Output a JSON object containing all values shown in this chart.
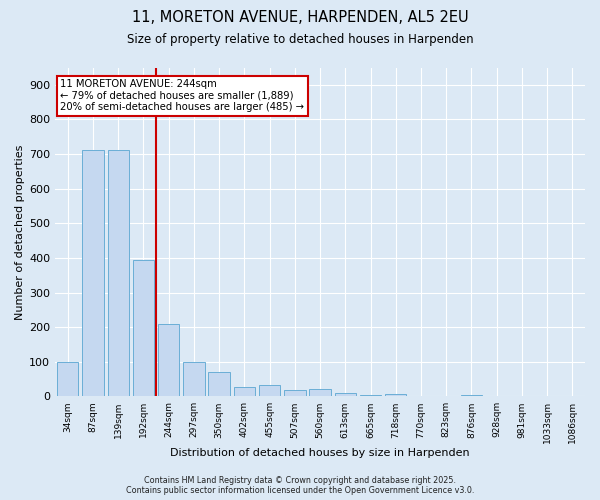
{
  "title_line1": "11, MORETON AVENUE, HARPENDEN, AL5 2EU",
  "title_line2": "Size of property relative to detached houses in Harpenden",
  "categories": [
    "34sqm",
    "87sqm",
    "139sqm",
    "192sqm",
    "244sqm",
    "297sqm",
    "350sqm",
    "402sqm",
    "455sqm",
    "507sqm",
    "560sqm",
    "613sqm",
    "665sqm",
    "718sqm",
    "770sqm",
    "823sqm",
    "876sqm",
    "928sqm",
    "981sqm",
    "1033sqm",
    "1086sqm"
  ],
  "values": [
    100,
    712,
    712,
    395,
    210,
    98,
    70,
    28,
    32,
    18,
    22,
    10,
    5,
    8,
    0,
    0,
    5,
    0,
    0,
    0,
    0
  ],
  "bar_color": "#c5d8f0",
  "bar_edge_color": "#6aaed6",
  "background_color": "#dce9f5",
  "grid_color": "#ffffff",
  "vline_index": 4,
  "vline_color": "#cc0000",
  "annotation_line1": "11 MORETON AVENUE: 244sqm",
  "annotation_line2": "← 79% of detached houses are smaller (1,889)",
  "annotation_line3": "20% of semi-detached houses are larger (485) →",
  "annotation_box_facecolor": "#ffffff",
  "annotation_box_edgecolor": "#cc0000",
  "xlabel": "Distribution of detached houses by size in Harpenden",
  "ylabel": "Number of detached properties",
  "ylim": [
    0,
    950
  ],
  "yticks": [
    0,
    100,
    200,
    300,
    400,
    500,
    600,
    700,
    800,
    900
  ],
  "footer_line1": "Contains HM Land Registry data © Crown copyright and database right 2025.",
  "footer_line2": "Contains public sector information licensed under the Open Government Licence v3.0."
}
